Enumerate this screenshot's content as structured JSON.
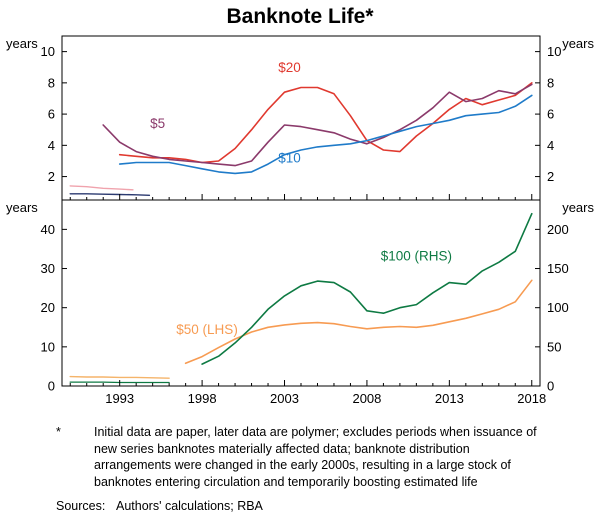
{
  "title": "Banknote Life*",
  "footnote": {
    "marker": "*",
    "text": "Initial data are paper, later data are polymer; excludes periods when issuance of new series banknotes materially affected data; banknote distribution arrangements were changed in the early 2000s, resulting in a large stock of banknotes entering circulation and temporarily boosting estimated life"
  },
  "sources": {
    "label": "Sources:",
    "text": "Authors' calculations; RBA"
  },
  "colors": {
    "red_20": "#e0392f",
    "purple_5": "#8b3a6b",
    "blue_10": "#1f7bc9",
    "orange_50": "#f79b52",
    "green_100": "#0e7a43",
    "paper_pink": "#f0a3ad",
    "paper_navy": "#2b3a70",
    "paper_orange": "#f5b46a",
    "paper_green": "#0e7a43"
  },
  "chart_data": {
    "type": "line",
    "title": "Banknote Life*",
    "x_axis": {
      "min": 1989.5,
      "max": 2018.5,
      "ticks": [
        1993,
        1998,
        2003,
        2008,
        2013,
        2018
      ]
    },
    "panels": [
      {
        "left_unit": "years",
        "right_unit": "years",
        "left_axis": {
          "min": 0.5,
          "max": 11,
          "ticks": [
            2,
            4,
            6,
            8,
            10
          ]
        },
        "right_axis": {
          "min": 0.5,
          "max": 11,
          "ticks": [
            2,
            4,
            6,
            8,
            10
          ]
        },
        "series": [
          {
            "id": "20-paper",
            "name": "$20 paper",
            "color": "#f0a3ad",
            "axis": "left",
            "width": 1.4,
            "x": [
              1990,
              1991,
              1992,
              1993,
              1993.8
            ],
            "y": [
              1.4,
              1.35,
              1.25,
              1.2,
              1.15
            ]
          },
          {
            "id": "10-paper",
            "name": "$10 paper",
            "color": "#2b3a70",
            "axis": "left",
            "width": 1.4,
            "x": [
              1990,
              1991,
              1992,
              1993,
              1994,
              1994.8
            ],
            "y": [
              0.9,
              0.9,
              0.87,
              0.85,
              0.83,
              0.8
            ]
          },
          {
            "id": "20-polymer",
            "name": "$20",
            "color": "#e0392f",
            "axis": "left",
            "width": 1.6,
            "x": [
              1993,
              1994,
              1995,
              1996,
              1997,
              1998,
              1999,
              2000,
              2001,
              2002,
              2003,
              2004,
              2005,
              2006,
              2007,
              2008,
              2009,
              2010,
              2011,
              2012,
              2013,
              2014,
              2015,
              2016,
              2017,
              2018
            ],
            "y": [
              3.4,
              3.3,
              3.2,
              3.2,
              3.1,
              2.9,
              3.0,
              3.8,
              5.0,
              6.3,
              7.4,
              7.7,
              7.7,
              7.3,
              5.9,
              4.3,
              3.7,
              3.6,
              4.6,
              5.4,
              6.3,
              7.0,
              6.6,
              6.9,
              7.2,
              8.0
            ]
          },
          {
            "id": "5-polymer",
            "name": "$5",
            "color": "#8b3a6b",
            "axis": "left",
            "width": 1.6,
            "x": [
              1992,
              1993,
              1994,
              1995,
              1996,
              1997,
              1998,
              1999,
              2000,
              2001,
              2002,
              2003,
              2004,
              2005,
              2006,
              2007,
              2008,
              2009,
              2010,
              2011,
              2012,
              2013,
              2014,
              2015,
              2016,
              2017,
              2018
            ],
            "y": [
              5.3,
              4.2,
              3.6,
              3.3,
              3.1,
              3.0,
              2.9,
              2.8,
              2.7,
              3.0,
              4.2,
              5.3,
              5.2,
              5.0,
              4.8,
              4.4,
              4.1,
              4.5,
              5.0,
              5.6,
              6.4,
              7.4,
              6.8,
              7.0,
              7.5,
              7.3,
              7.9
            ]
          },
          {
            "id": "10-polymer",
            "name": "$10",
            "color": "#1f7bc9",
            "axis": "left",
            "width": 1.6,
            "x": [
              1993,
              1994,
              1995,
              1996,
              1997,
              1998,
              1999,
              2000,
              2001,
              2002,
              2003,
              2004,
              2005,
              2006,
              2007,
              2008,
              2009,
              2010,
              2011,
              2012,
              2013,
              2014,
              2015,
              2016,
              2017,
              2018
            ],
            "y": [
              2.8,
              2.9,
              2.9,
              2.9,
              2.7,
              2.5,
              2.3,
              2.2,
              2.3,
              2.8,
              3.4,
              3.7,
              3.9,
              4.0,
              4.1,
              4.3,
              4.6,
              4.9,
              5.2,
              5.4,
              5.6,
              5.9,
              6.0,
              6.1,
              6.5,
              7.2
            ]
          }
        ],
        "annotations": [
          {
            "text": "$20",
            "x": 2003.3,
            "y": 8.7,
            "color": "#e0392f"
          },
          {
            "text": "$5",
            "x": 1995.3,
            "y": 5.1,
            "color": "#8b3a6b"
          },
          {
            "text": "$10",
            "x": 2003.3,
            "y": 2.9,
            "color": "#1f7bc9"
          }
        ]
      },
      {
        "left_unit": "years",
        "right_unit": "years",
        "left_axis": {
          "min": 0,
          "max": 47.5,
          "ticks": [
            0,
            10,
            20,
            30,
            40
          ]
        },
        "right_axis": {
          "min": 0,
          "max": 237.5,
          "ticks": [
            0,
            50,
            100,
            150,
            200
          ]
        },
        "series": [
          {
            "id": "100-paper",
            "name": "$100 paper",
            "color": "#0e7a43",
            "axis": "right",
            "width": 1.3,
            "x": [
              1990,
              1991,
              1992,
              1993,
              1994,
              1995,
              1996
            ],
            "y": [
              5,
              5,
              5,
              4.5,
              4.5,
              4.5,
              4.5
            ]
          },
          {
            "id": "50-paper",
            "name": "$50 paper",
            "color": "#f5b46a",
            "axis": "left",
            "width": 1.4,
            "x": [
              1990,
              1991,
              1992,
              1993,
              1994,
              1995,
              1996
            ],
            "y": [
              2.4,
              2.3,
              2.3,
              2.2,
              2.2,
              2.1,
              2.0
            ]
          },
          {
            "id": "50-polymer",
            "name": "$50 (LHS)",
            "color": "#f79b52",
            "axis": "left",
            "width": 1.6,
            "x": [
              1997,
              1998,
              1999,
              2000,
              2001,
              2002,
              2003,
              2004,
              2005,
              2006,
              2007,
              2008,
              2009,
              2010,
              2011,
              2012,
              2013,
              2014,
              2015,
              2016,
              2017,
              2018
            ],
            "y": [
              5.8,
              7.5,
              9.8,
              12.0,
              13.8,
              15.0,
              15.6,
              16.0,
              16.2,
              15.9,
              15.2,
              14.6,
              15.0,
              15.2,
              15.0,
              15.5,
              16.4,
              17.3,
              18.4,
              19.6,
              21.5,
              27.0
            ]
          },
          {
            "id": "100-polymer",
            "name": "$100 (RHS)",
            "color": "#0e7a43",
            "axis": "right",
            "width": 1.6,
            "x": [
              1998,
              1999,
              2000,
              2001,
              2002,
              2003,
              2004,
              2005,
              2006,
              2007,
              2008,
              2009,
              2010,
              2011,
              2012,
              2013,
              2014,
              2015,
              2016,
              2017,
              2018
            ],
            "y": [
              28,
              38,
              55,
              75,
              98,
              115,
              128,
              134,
              132,
              120,
              96,
              93,
              100,
              104,
              119,
              132,
              130,
              147,
              158,
              172,
              220
            ]
          }
        ],
        "annotations": [
          {
            "text": "$100 (RHS)",
            "x": 2011.0,
            "y": 32.0,
            "color": "#0e7a43"
          },
          {
            "text": "$50 (LHS)",
            "x": 1998.3,
            "y": 13.3,
            "color": "#f79b52"
          }
        ]
      }
    ]
  }
}
